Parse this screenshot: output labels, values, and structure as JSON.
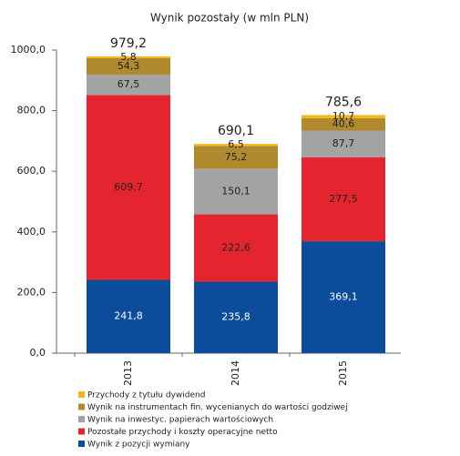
{
  "chart_data": {
    "type": "stacked_bar",
    "title": "Wynik pozostały (w mln PLN)",
    "categories": [
      "2013",
      "2014",
      "2015"
    ],
    "series": [
      {
        "name": "Wynik z pozycji wymiany",
        "color": "#0b4c9b",
        "values": [
          241.8,
          235.8,
          369.1
        ],
        "value_labels": [
          "241,8",
          "235,8",
          "369,1"
        ]
      },
      {
        "name": "Pozostałe przychody i koszty operacyjne netto",
        "color": "#e4252f",
        "values": [
          609.7,
          222.6,
          277.5
        ],
        "value_labels": [
          "609,7",
          "222,6",
          "277,5"
        ]
      },
      {
        "name": "Wynik na inwestyc. papierach wartościowych",
        "color": "#a3a3a3",
        "values": [
          67.5,
          150.1,
          87.7
        ],
        "value_labels": [
          "67,5",
          "150,1",
          "87,7"
        ]
      },
      {
        "name": "Wynik na instrumentach fin. wycenianych do wartości godziwej",
        "color": "#b08a2c",
        "values": [
          54.3,
          75.2,
          40.6
        ],
        "value_labels": [
          "54,3",
          "75,2",
          "40,6"
        ]
      },
      {
        "name": "Przychody z tytułu dywidend",
        "color": "#f5b718",
        "values": [
          5.8,
          6.5,
          10.7
        ],
        "value_labels": [
          "5,8",
          "6,5",
          "10,7"
        ]
      }
    ],
    "totals": [
      979.2,
      690.1,
      785.6
    ],
    "total_labels": [
      "979,2",
      "690,1",
      "785,6"
    ],
    "ylim": [
      0,
      1000
    ],
    "yticks": [
      {
        "value": 0,
        "label": "0,0"
      },
      {
        "value": 200,
        "label": "200,0"
      },
      {
        "value": 400,
        "label": "400,0"
      },
      {
        "value": 600,
        "label": "600,0"
      },
      {
        "value": 800,
        "label": "800,0"
      },
      {
        "value": 1000,
        "label": "1000,0"
      }
    ],
    "grid": false,
    "legend": "bottom"
  }
}
